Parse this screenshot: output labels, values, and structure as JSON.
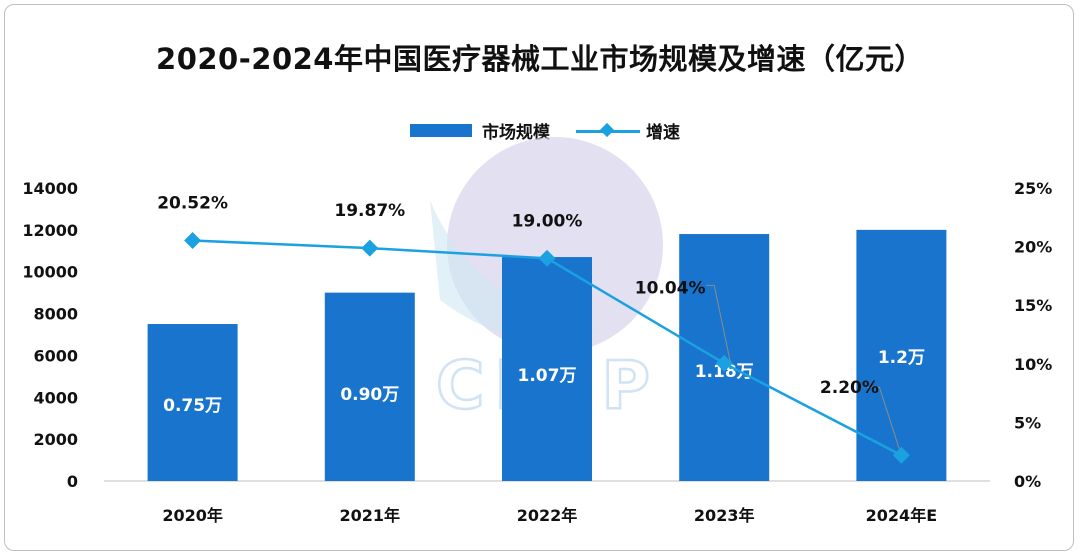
{
  "chart_data": {
    "type": "bar",
    "title": "2020-2024年中国医疗器械工业市场规模及增速（亿元）",
    "categories": [
      "2020年",
      "2021年",
      "2022年",
      "2023年",
      "2024年E"
    ],
    "series": [
      {
        "name": "市场规模",
        "type": "bar",
        "axis": "left",
        "values": [
          7500,
          9000,
          10700,
          11800,
          12000
        ],
        "data_labels": [
          "0.75万",
          "0.90万",
          "1.07万",
          "1.18万",
          "1.2万"
        ],
        "color": "#1874cd"
      },
      {
        "name": "增速",
        "type": "line",
        "axis": "right",
        "values": [
          20.52,
          19.87,
          19.0,
          10.04,
          2.2
        ],
        "data_labels": [
          "20.52%",
          "19.87%",
          "19.00%",
          "10.04%",
          "2.20%"
        ],
        "color": "#1ba1e2"
      }
    ],
    "y_left": {
      "ylim": [
        0,
        14000
      ],
      "ticks": [
        "0",
        "2000",
        "4000",
        "6000",
        "8000",
        "10000",
        "12000",
        "14000"
      ]
    },
    "y_right": {
      "ylim": [
        0,
        25
      ],
      "ticks": [
        "0%",
        "5%",
        "10%",
        "15%",
        "20%",
        "25%"
      ]
    },
    "grid": false,
    "legend": "top-center",
    "watermark": "CFLP"
  }
}
